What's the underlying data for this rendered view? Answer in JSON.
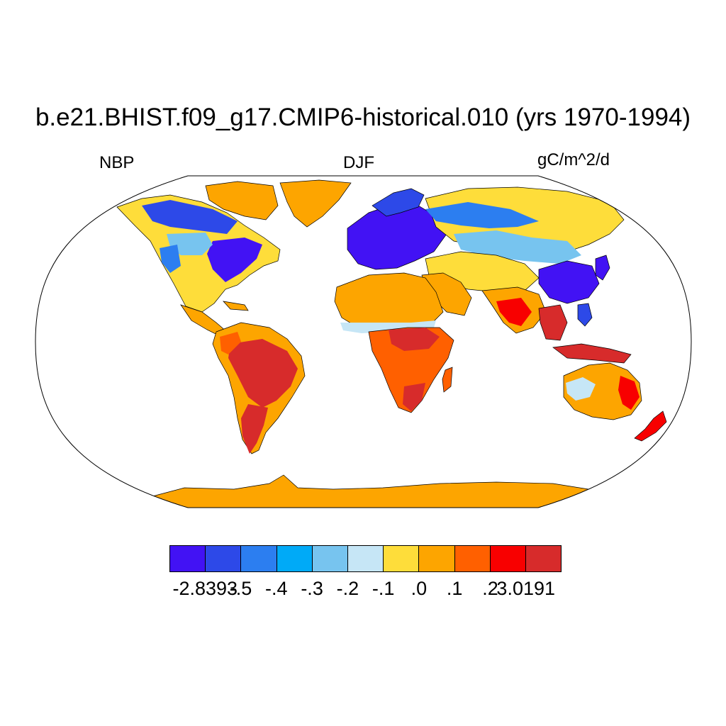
{
  "title": "b.e21.BHIST.f09_g17.CMIP6-historical.010 (yrs 1970-1994)",
  "variable_label": "NBP",
  "season_label": "DJF",
  "units_label": "gC/m^2/d",
  "projection": "Robinson",
  "colorbar": {
    "colors": [
      "#4212f4",
      "#2d49e8",
      "#2c7ef0",
      "#00aaf7",
      "#77c4ef",
      "#c6e6f6",
      "#fedd3a",
      "#fda500",
      "#ff6000",
      "#f80000",
      "#d72b2b"
    ],
    "labels": [
      "-2.8393",
      "-.5",
      "-.4",
      "-.3",
      "-.2",
      "-.1",
      ".0",
      ".1",
      ".2",
      "3.0191"
    ]
  }
}
